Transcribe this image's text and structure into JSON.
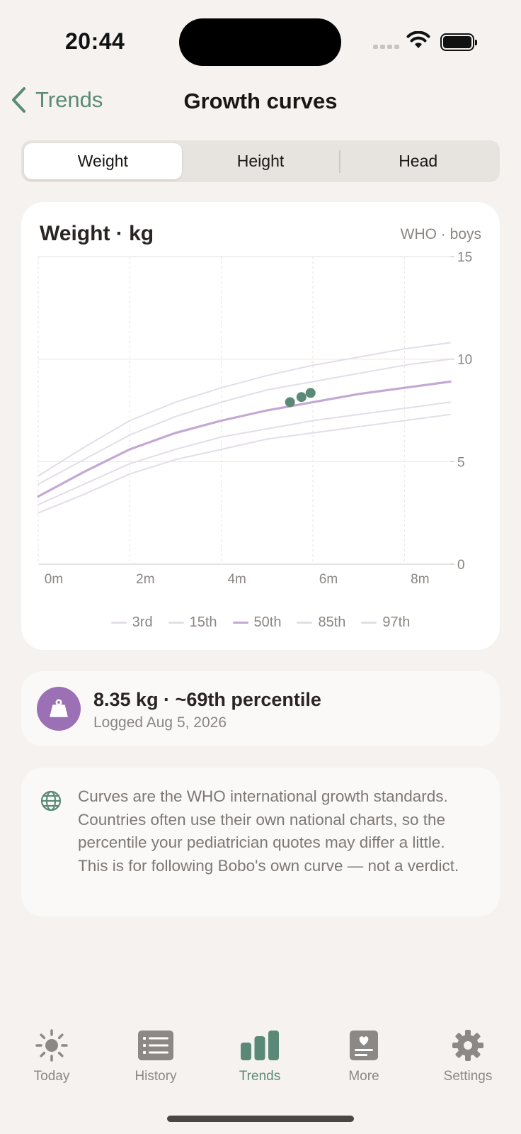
{
  "status_bar": {
    "time": "20:44"
  },
  "nav": {
    "back_label": "Trends",
    "title": "Growth curves"
  },
  "segments": {
    "weight": "Weight",
    "height": "Height",
    "head": "Head",
    "active": "weight"
  },
  "chart_card": {
    "title": "Weight · kg",
    "source": "WHO · boys"
  },
  "chart_data": {
    "type": "line",
    "x_unit": "months",
    "xlim": [
      0,
      9
    ],
    "ylim": [
      0,
      15
    ],
    "x_ticks": [
      0,
      2,
      4,
      6,
      8
    ],
    "x_tick_labels": [
      "0m",
      "2m",
      "4m",
      "6m",
      "8m"
    ],
    "y_ticks": [
      0,
      5,
      10,
      15
    ],
    "y_tick_labels": [
      "0",
      "5",
      "10",
      "15"
    ],
    "grid": true,
    "legend_position": "bottom",
    "x": [
      0,
      1,
      2,
      3,
      4,
      5,
      6,
      7,
      8,
      9
    ],
    "series": [
      {
        "name": "3rd",
        "color": "#e3dde8",
        "values": [
          2.5,
          3.4,
          4.4,
          5.1,
          5.6,
          6.1,
          6.4,
          6.7,
          7.0,
          7.3
        ]
      },
      {
        "name": "15th",
        "color": "#e3dde8",
        "values": [
          2.9,
          3.9,
          4.9,
          5.6,
          6.2,
          6.6,
          7.0,
          7.3,
          7.6,
          7.9
        ]
      },
      {
        "name": "50th",
        "color": "#c4a8d4",
        "values": [
          3.3,
          4.5,
          5.6,
          6.4,
          7.0,
          7.5,
          7.9,
          8.3,
          8.6,
          8.9
        ]
      },
      {
        "name": "85th",
        "color": "#e3dde8",
        "values": [
          3.9,
          5.1,
          6.3,
          7.2,
          7.9,
          8.5,
          8.9,
          9.3,
          9.7,
          10.0
        ]
      },
      {
        "name": "97th",
        "color": "#e3dde8",
        "values": [
          4.3,
          5.7,
          7.0,
          7.9,
          8.6,
          9.2,
          9.7,
          10.1,
          10.5,
          10.8
        ]
      }
    ],
    "measurements": {
      "color": "#5a8a77",
      "x": [
        5.5,
        5.75,
        5.95
      ],
      "y": [
        7.9,
        8.15,
        8.35
      ]
    }
  },
  "latest": {
    "value": "8.35 kg · ~69th percentile",
    "date": "Logged Aug 5, 2026"
  },
  "note": {
    "text": "Curves are the WHO international growth standards. Countries often use their own national charts, so the percentile your pediatrician quotes may differ a little. This is for following Bobo's own curve — not a verdict."
  },
  "tabs": [
    {
      "id": "today",
      "label": "Today",
      "icon": "sun-icon"
    },
    {
      "id": "history",
      "label": "History",
      "icon": "list-icon"
    },
    {
      "id": "trends",
      "label": "Trends",
      "icon": "bar-chart-icon"
    },
    {
      "id": "more",
      "label": "More",
      "icon": "heart-card-icon"
    },
    {
      "id": "settings",
      "label": "Settings",
      "icon": "gear-icon"
    }
  ],
  "colors": {
    "accent": "#5a8a77",
    "median_curve": "#c4a8d4",
    "percentile_curve": "#e3dde8",
    "weight_badge": "#9b70b4"
  }
}
